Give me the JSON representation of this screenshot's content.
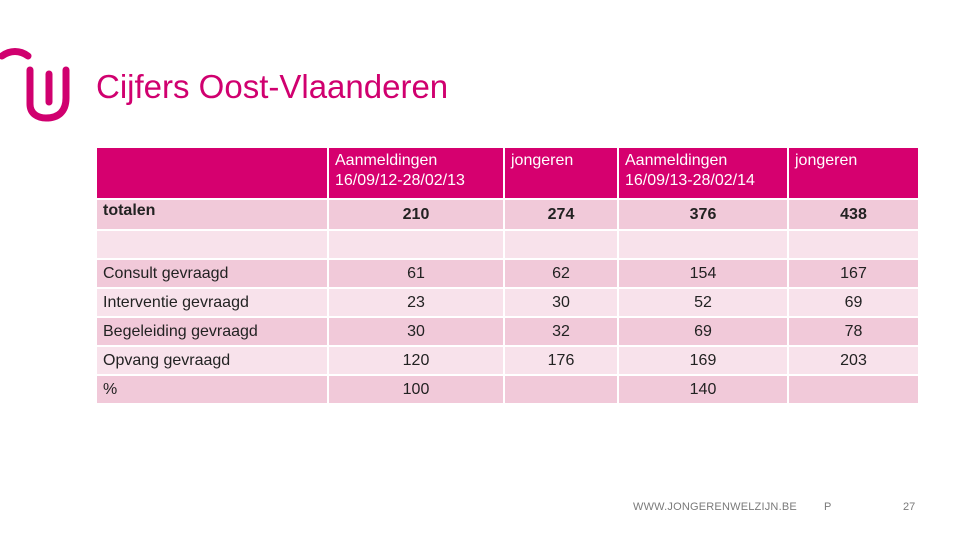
{
  "slide": {
    "title": "Cijfers Oost-Vlaanderen",
    "brand_color": "#d0006f"
  },
  "table": {
    "headers": [
      "",
      "Aanmeldingen\n16/09/12-28/02/13",
      "jongeren",
      "Aanmeldingen\n16/09/13-28/02/14",
      "jongeren"
    ],
    "rows": [
      [
        "totalen",
        "210",
        "274",
        "376",
        "438"
      ],
      [
        "",
        "",
        "",
        "",
        ""
      ],
      [
        "Consult gevraagd",
        "61",
        "62",
        "154",
        "167"
      ],
      [
        "Interventie gevraagd",
        "23",
        "30",
        "52",
        "69"
      ],
      [
        "Begeleiding gevraagd",
        "30",
        "32",
        "69",
        "78"
      ],
      [
        "Opvang gevraagd",
        "120",
        "176",
        "169",
        "203"
      ],
      [
        "%",
        "100",
        "",
        "140",
        ""
      ]
    ]
  },
  "footer": {
    "url": "WWW.JONGERENWELZIJN.BE",
    "marker": "P",
    "page_number": "27"
  },
  "icons": {
    "logo": "jongerenwelzijn-logo-icon"
  }
}
